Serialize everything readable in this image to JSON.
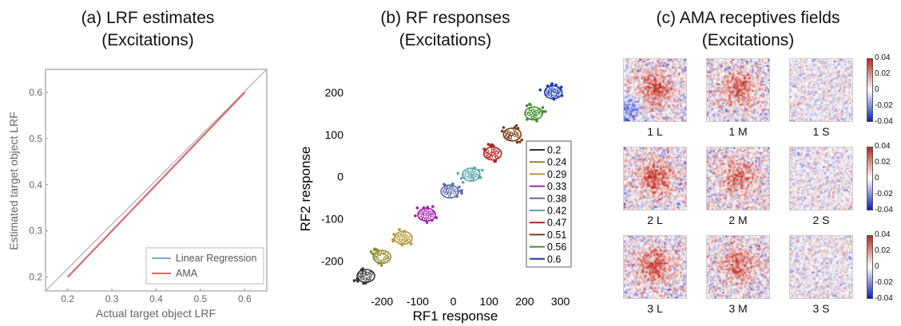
{
  "chart_data": [
    {
      "id": "a",
      "type": "line",
      "title_line1": "(a) LRF estimates",
      "title_line2": "(Excitations)",
      "xlabel": "Actual target object LRF",
      "ylabel": "Estimated target object LRF",
      "xlim": [
        0.15,
        0.65
      ],
      "ylim": [
        0.17,
        0.65
      ],
      "xticks": [
        "0.2",
        "0.3",
        "0.4",
        "0.5",
        "0.6"
      ],
      "yticks": [
        "0.2",
        "0.3",
        "0.4",
        "0.5",
        "0.6"
      ],
      "legend_position": "bottom-right",
      "series": [
        {
          "name": "Linear Regression",
          "color": "#7fa7d6",
          "x": [
            0.2,
            0.24,
            0.29,
            0.33,
            0.38,
            0.42,
            0.47,
            0.51,
            0.56,
            0.6
          ],
          "y": [
            0.2,
            0.24,
            0.29,
            0.33,
            0.38,
            0.42,
            0.47,
            0.51,
            0.56,
            0.6
          ]
        },
        {
          "name": "AMA",
          "color": "#e06666",
          "x": [
            0.2,
            0.24,
            0.29,
            0.33,
            0.38,
            0.42,
            0.47,
            0.51,
            0.56,
            0.6
          ],
          "y": [
            0.2,
            0.24,
            0.29,
            0.33,
            0.38,
            0.42,
            0.47,
            0.51,
            0.56,
            0.6
          ]
        }
      ],
      "identity_line_color": "#bdbdbd"
    },
    {
      "id": "b",
      "type": "scatter",
      "title_line1": "(b) RF responses",
      "title_line2": "(Excitations)",
      "xlabel": "RF1 response",
      "ylabel": "RF2 response",
      "xlim": [
        -290,
        330
      ],
      "ylim": [
        -265,
        245
      ],
      "xticks": [
        -200,
        -100,
        0,
        100,
        200,
        300
      ],
      "yticks": [
        -200,
        -100,
        0,
        100,
        200
      ],
      "legend_position": "bottom-right",
      "series": [
        {
          "name": "0.2",
          "color": "#333333",
          "center": [
            -245,
            -235
          ]
        },
        {
          "name": "0.24",
          "color": "#8c8c2a",
          "center": [
            -200,
            -190
          ]
        },
        {
          "name": "0.29",
          "color": "#b8953a",
          "center": [
            -140,
            -145
          ]
        },
        {
          "name": "0.33",
          "color": "#a020a8",
          "center": [
            -75,
            -90
          ]
        },
        {
          "name": "0.38",
          "color": "#5a6aa8",
          "center": [
            -10,
            -35
          ]
        },
        {
          "name": "0.42",
          "color": "#5aa6ad",
          "center": [
            50,
            5
          ]
        },
        {
          "name": "0.47",
          "color": "#b22222",
          "center": [
            110,
            55
          ]
        },
        {
          "name": "0.51",
          "color": "#7a3b14",
          "center": [
            165,
            100
          ]
        },
        {
          "name": "0.56",
          "color": "#3f8f2a",
          "center": [
            225,
            150
          ]
        },
        {
          "name": "0.6",
          "color": "#1f3bb0",
          "center": [
            280,
            200
          ]
        }
      ]
    },
    {
      "id": "c",
      "type": "heatmap",
      "title_line1": "(c) AMA receptives fields",
      "title_line2": "(Excitations)",
      "colorbar_ticks": [
        "0.04",
        "0.02",
        "0",
        "-0.02",
        "-0.04"
      ],
      "colormap": [
        "#0a1fbf",
        "#ffffff",
        "#c0251a"
      ],
      "cells": [
        {
          "label": "1 L",
          "type": "L",
          "row": 0
        },
        {
          "label": "1 M",
          "type": "M",
          "row": 0
        },
        {
          "label": "1 S",
          "type": "S",
          "row": 0
        },
        {
          "label": "2 L",
          "type": "L",
          "row": 1
        },
        {
          "label": "2 M",
          "type": "M",
          "row": 1
        },
        {
          "label": "2 S",
          "type": "S",
          "row": 1
        },
        {
          "label": "3 L",
          "type": "L",
          "row": 2
        },
        {
          "label": "3 M",
          "type": "M",
          "row": 2
        },
        {
          "label": "3 S",
          "type": "S",
          "row": 2
        }
      ]
    }
  ]
}
